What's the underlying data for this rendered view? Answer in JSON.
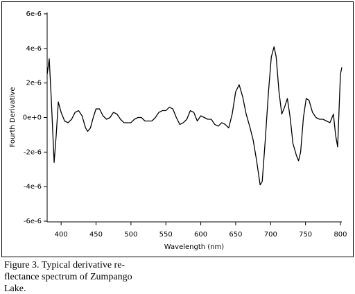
{
  "chart_data": {
    "type": "line",
    "xlabel": "Wavelength (nm)",
    "ylabel": "Fourth Derivative",
    "color": "#000000",
    "xlim": [
      380,
      802
    ],
    "ylim": [
      -6e-06,
      6e-06
    ],
    "xticks": [
      400,
      450,
      500,
      550,
      600,
      650,
      700,
      750,
      800
    ],
    "yticks": [
      {
        "value": -6e-06,
        "label": "-6e-6"
      },
      {
        "value": -4e-06,
        "label": "-4e-6"
      },
      {
        "value": -2e-06,
        "label": "-2e-6"
      },
      {
        "value": 0,
        "label": "0e+0"
      },
      {
        "value": 2e-06,
        "label": "2e-6"
      },
      {
        "value": 4e-06,
        "label": "4e-6"
      },
      {
        "value": 6e-06,
        "label": "6e-6"
      }
    ],
    "x": [
      380,
      383,
      386,
      390,
      393,
      396,
      400,
      405,
      410,
      415,
      420,
      425,
      430,
      435,
      438,
      442,
      446,
      450,
      455,
      460,
      465,
      470,
      475,
      480,
      485,
      490,
      500,
      505,
      510,
      515,
      520,
      530,
      535,
      540,
      545,
      550,
      555,
      560,
      565,
      570,
      575,
      580,
      585,
      590,
      595,
      600,
      605,
      610,
      615,
      620,
      625,
      630,
      635,
      640,
      645,
      650,
      655,
      660,
      665,
      670,
      675,
      680,
      685,
      688,
      692,
      697,
      701,
      705,
      708,
      712,
      716,
      720,
      724,
      728,
      732,
      737,
      740,
      743,
      747,
      751,
      755,
      760,
      765,
      770,
      775,
      780,
      785,
      790,
      793,
      796,
      800,
      802
    ],
    "values": [
      2.5e-06,
      3.4e-06,
      1e-06,
      -2.6e-06,
      -1e-06,
      9e-07,
      3e-07,
      -2e-07,
      -3e-07,
      -1e-07,
      3e-07,
      4e-07,
      1e-07,
      -6e-07,
      -8e-07,
      -6e-07,
      0.0,
      5e-07,
      5e-07,
      1e-07,
      -1e-07,
      0.0,
      3e-07,
      2e-07,
      -1e-07,
      -3e-07,
      -3e-07,
      -1e-07,
      0.0,
      0.0,
      -2e-07,
      -2e-07,
      0.0,
      3e-07,
      4e-07,
      4e-07,
      6e-07,
      5e-07,
      0.0,
      -4e-07,
      -3e-07,
      -1e-07,
      4e-07,
      3e-07,
      -2e-07,
      1e-07,
      0.0,
      -1e-07,
      -1e-07,
      -4e-07,
      -5e-07,
      -3e-07,
      -4e-07,
      -6e-07,
      2e-07,
      1.5e-06,
      1.9e-06,
      1.2e-06,
      2e-07,
      -5e-07,
      -1.3e-06,
      -2.5e-06,
      -3.9e-06,
      -3.7e-06,
      -1.5e-06,
      1.5e-06,
      3.5e-06,
      4.1e-06,
      3.5e-06,
      1.5e-06,
      2e-07,
      6e-07,
      1.1e-06,
      0.0,
      -1.5e-06,
      -2.2e-06,
      -2.5e-06,
      -2e-06,
      0.0,
      1.1e-06,
      1e-06,
      3e-07,
      0.0,
      -1e-07,
      -1e-07,
      -2e-07,
      -3e-07,
      2e-07,
      -1e-06,
      -1.7e-06,
      2.5e-06,
      2.9e-06
    ]
  },
  "caption": [
    "Figure 3. Typical derivative re-",
    "flectance spectrum of Zumpango",
    "Lake."
  ]
}
